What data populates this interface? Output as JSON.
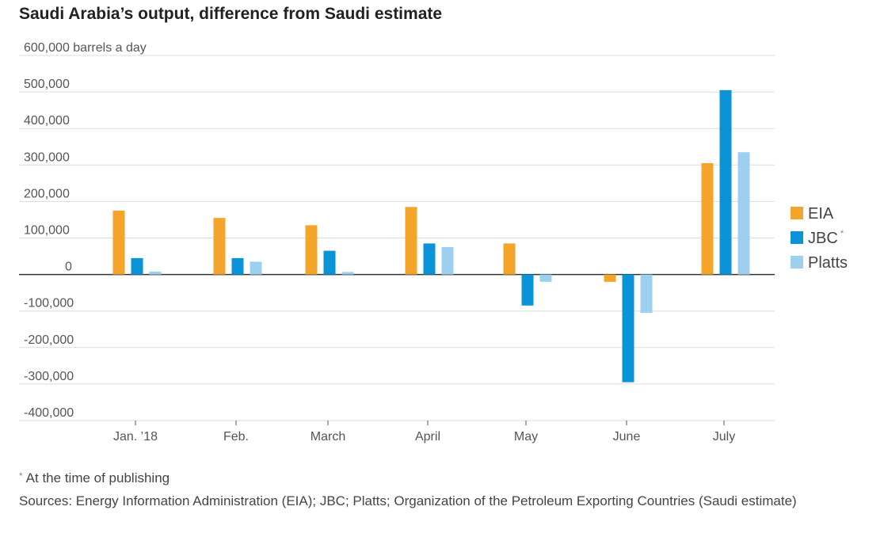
{
  "title": "Saudi Arabia’s output, difference from Saudi estimate",
  "footnote": {
    "marker": "*",
    "text": "At the time of publishing"
  },
  "sources": "Sources: Energy Information Administration (EIA); JBC; Platts; Organization of the Petroleum Exporting Countries (Saudi estimate)",
  "chart_data": {
    "type": "bar",
    "title": "Saudi Arabia’s output, difference from Saudi estimate",
    "ylabel": "barrels a day",
    "ylim": [
      -400000,
      600000
    ],
    "yticks": [
      {
        "value": 600000,
        "label": "600,000 barrels a day"
      },
      {
        "value": 500000,
        "label": "500,000"
      },
      {
        "value": 400000,
        "label": "400,000"
      },
      {
        "value": 300000,
        "label": "300,000"
      },
      {
        "value": 200000,
        "label": "200,000"
      },
      {
        "value": 100000,
        "label": "100,000"
      },
      {
        "value": 0,
        "label": "0"
      },
      {
        "value": -100000,
        "label": "-100,000"
      },
      {
        "value": -200000,
        "label": "-200,000"
      },
      {
        "value": -300000,
        "label": "-300,000"
      },
      {
        "value": -400000,
        "label": "-400,000"
      }
    ],
    "categories": [
      "Jan. ’18",
      "Feb.",
      "March",
      "April",
      "May",
      "June",
      "July"
    ],
    "series": [
      {
        "name": "EIA",
        "color": "#f5a42a",
        "values": [
          175000,
          155000,
          135000,
          185000,
          85000,
          -20000,
          305000
        ]
      },
      {
        "name": "JBC",
        "marker": "*",
        "color": "#0a93d6",
        "values": [
          45000,
          45000,
          65000,
          85000,
          -85000,
          -295000,
          505000
        ]
      },
      {
        "name": "Platts",
        "color": "#9dd0ee",
        "values": [
          8000,
          35000,
          7000,
          75000,
          -20000,
          -105000,
          335000
        ]
      }
    ],
    "grid": true,
    "legend": "right"
  }
}
